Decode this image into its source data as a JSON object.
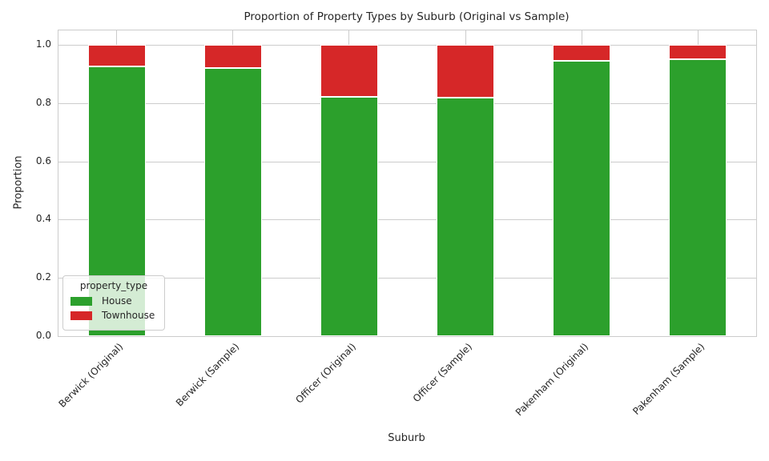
{
  "chart_data": {
    "type": "bar",
    "stacked": true,
    "title": "Proportion of Property Types by Suburb (Original vs Sample)",
    "xlabel": "Suburb",
    "ylabel": "Proportion",
    "categories": [
      "Berwick (Original)",
      "Berwick (Sample)",
      "Officer (Original)",
      "Officer (Sample)",
      "Pakenham (Original)",
      "Pakenham (Sample)"
    ],
    "series": [
      {
        "name": "House",
        "color": "#2ca02c",
        "values": [
          0.925,
          0.92,
          0.821,
          0.818,
          0.945,
          0.951
        ]
      },
      {
        "name": "Townhouse",
        "color": "#d62728",
        "values": [
          0.075,
          0.08,
          0.179,
          0.182,
          0.055,
          0.049
        ]
      }
    ],
    "ylim": [
      0.0,
      1.05
    ],
    "yticks": [
      0.0,
      0.2,
      0.4,
      0.6,
      0.8,
      1.0
    ],
    "ytick_labels": [
      "0.0",
      "0.2",
      "0.4",
      "0.6",
      "0.8",
      "1.0"
    ],
    "legend_title": "property_type",
    "legend_position": "lower left",
    "grid": true,
    "grid_color": "#cccccc",
    "text_color": "#262626",
    "background_color": "#ffffff"
  }
}
